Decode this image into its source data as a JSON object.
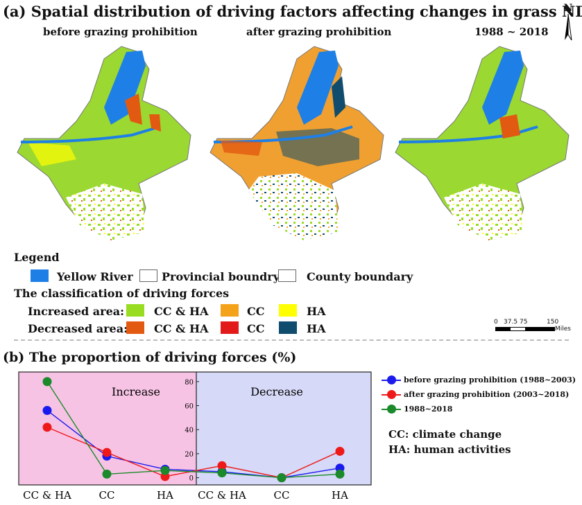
{
  "title": "(a) Spatial distribution of driving factors affecting changes in grass NDVI",
  "map_labels": {
    "before": "before grazing prohibition",
    "after": "after grazing prohibition",
    "period": "1988 ~ 2018",
    "north": "N"
  },
  "legend": {
    "title": "Legend",
    "yellow_river": "Yellow River",
    "provincial": "Provincial boundry",
    "county": "County boundary",
    "classification_title": "The classification of driving forces",
    "increased_label": "Increased area:",
    "decreased_label": "Decreased area:",
    "cc_ha": "CC & HA",
    "cc": "CC",
    "ha": "HA",
    "colors": {
      "river": "#1e7fe6",
      "inc_cc_ha": "#99dd22",
      "inc_cc": "#f5a21b",
      "inc_ha": "#ffff00",
      "dec_cc_ha": "#e25a12",
      "dec_cc": "#e31a1a",
      "dec_ha": "#0f4c6e"
    }
  },
  "scale": {
    "ticks": [
      "0",
      "37.5",
      "75",
      "150"
    ],
    "unit": "Miles"
  },
  "panel_b_title": "(b) The proportion of driving forces (%)",
  "chart_data": {
    "type": "line",
    "panels": [
      "Increase",
      "Decrease"
    ],
    "categories": [
      "CC & HA",
      "CC",
      "HA",
      "CC & HA",
      "CC",
      "HA"
    ],
    "yticks": [
      "0",
      "20",
      "40",
      "60",
      "80"
    ],
    "ylim": [
      -6,
      88
    ],
    "series": [
      {
        "name": "before grazing prohibition (1988~2003)",
        "color": "#1a1aee",
        "values": [
          56,
          18,
          7,
          5,
          0,
          8
        ]
      },
      {
        "name": "after grazing prohibition (2003~2018)",
        "color": "#ee1a1a",
        "values": [
          42,
          21,
          1,
          10,
          0,
          22
        ]
      },
      {
        "name": "1988~2018",
        "color": "#1a8a2a",
        "values": [
          80,
          3,
          6,
          4,
          0,
          3
        ]
      }
    ],
    "panel_colors": {
      "increase": "#f7c3e4",
      "decrease": "#d6d9f7"
    }
  },
  "notes": {
    "cc": "CC:  climate change",
    "ha": "HA:  human activities"
  }
}
